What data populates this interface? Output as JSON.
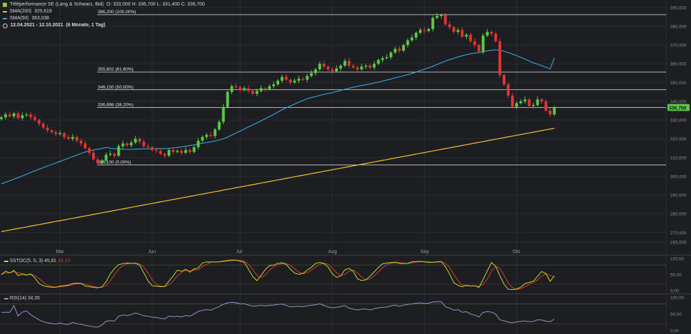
{
  "header": {
    "instrument": "Téléperformance SE (Lang & Schwarz, Bid)",
    "ohlc": "O: 333,000  H: 336,700  L: 331,400  C: 336,700",
    "sma200_label": "SMA(200)",
    "sma200_value": "325,619",
    "sma50_label": "SMA(50)",
    "sma50_value": "363,038",
    "range": "12.04.2021 - 12.10.2021",
    "range_note": "(6 Monate, 1 Tag)"
  },
  "colors": {
    "background": "#1c1e22",
    "up": "#5cc945",
    "down": "#e03535",
    "sma200": "#f2c230",
    "sma50": "#3aa8d8",
    "fib": "#e8e8e8",
    "stoch_k": "#b6e320",
    "stoch_d": "#e03535",
    "rsi": "#9b93c9",
    "price_tag": "#5cc945"
  },
  "chart_data": [
    {
      "type": "candlestick",
      "y_axis": {
        "min": 262,
        "max": 394,
        "ticks": [
          "265,000",
          "270,000",
          "280,000",
          "290,000",
          "300,000",
          "310,000",
          "320,000",
          "330,000",
          "340,000",
          "350,000",
          "360,000",
          "370,000",
          "380,000",
          "390,000"
        ],
        "tick_values": [
          265,
          270,
          280,
          290,
          300,
          310,
          320,
          330,
          340,
          350,
          360,
          370,
          380,
          390
        ],
        "position": "right"
      },
      "x_axis": {
        "months": [
          "Mai",
          "Jun",
          "Jul",
          "Aug",
          "Sep",
          "Okt"
        ],
        "month_day_index": [
          14,
          36,
          57,
          79,
          101,
          123
        ]
      },
      "last_price_label": "336,700",
      "last_price": 336.7,
      "fib_levels": [
        {
          "label": "386,200 (100.00%)",
          "value": 386.2
        },
        {
          "label": "355,602 (61.80%)",
          "value": 355.602
        },
        {
          "label": "346,150 (50.00%)",
          "value": 346.15
        },
        {
          "label": "336,698 (38.20%)",
          "value": 336.698
        },
        {
          "label": "306,100 (0.00%)",
          "value": 306.1
        }
      ],
      "fib_start_day": 23,
      "close": [
        331.5,
        333.0,
        332.0,
        333.5,
        331.0,
        332.5,
        333.0,
        331.5,
        330.0,
        328.0,
        326.0,
        324.5,
        323.5,
        322.5,
        323.0,
        321.0,
        320.0,
        321.0,
        319.0,
        317.5,
        315.0,
        312.5,
        309.0,
        307.0,
        308.5,
        311.5,
        312.0,
        311.0,
        316.0,
        317.5,
        316.5,
        318.0,
        320.0,
        318.5,
        316.0,
        315.5,
        314.0,
        313.5,
        312.0,
        311.0,
        314.0,
        313.0,
        313.5,
        312.5,
        314.0,
        313.0,
        315.5,
        319.0,
        321.0,
        322.0,
        321.5,
        325.0,
        329.0,
        337.0,
        345.0,
        348.0,
        347.5,
        346.0,
        347.0,
        345.5,
        344.0,
        345.5,
        347.0,
        346.5,
        348.0,
        349.0,
        351.0,
        353.0,
        351.5,
        350.0,
        351.0,
        352.0,
        351.5,
        353.5,
        355.0,
        357.0,
        360.0,
        358.5,
        357.0,
        356.0,
        357.5,
        359.0,
        361.5,
        359.0,
        358.0,
        357.0,
        358.5,
        359.0,
        358.0,
        360.0,
        362.0,
        363.0,
        363.5,
        366.0,
        368.0,
        367.0,
        370.0,
        372.5,
        374.0,
        376.5,
        378.0,
        377.5,
        378.5,
        384.5,
        385.5,
        386.0,
        381.0,
        379.5,
        377.0,
        378.0,
        374.5,
        375.5,
        372.0,
        370.0,
        366.5,
        375.0,
        377.0,
        376.0,
        372.0,
        354.0,
        349.0,
        343.0,
        337.0,
        339.0,
        340.0,
        341.0,
        337.5,
        338.0,
        341.0,
        340.0,
        335.0,
        333.0,
        336.7
      ],
      "series": [
        {
          "name": "SMA(200)",
          "start": 270.5,
          "end": 325.619
        },
        {
          "name": "SMA(50)",
          "start": 296.0,
          "end": 363.038
        }
      ]
    },
    {
      "type": "line",
      "label": "SSTOC(5, 5, 3)",
      "k_value": "45,81",
      "d_value": "43,13",
      "ticks": [
        "100,00",
        "50,00",
        "0,00"
      ],
      "tick_values": [
        100,
        50,
        0
      ],
      "ylim": [
        0,
        100
      ]
    },
    {
      "type": "line",
      "label": "RSI(14)",
      "value": "34,35",
      "ticks": [
        "100,00",
        "50,00",
        "0,00"
      ],
      "tick_values": [
        100,
        50,
        0
      ],
      "ylim": [
        0,
        100
      ]
    }
  ]
}
